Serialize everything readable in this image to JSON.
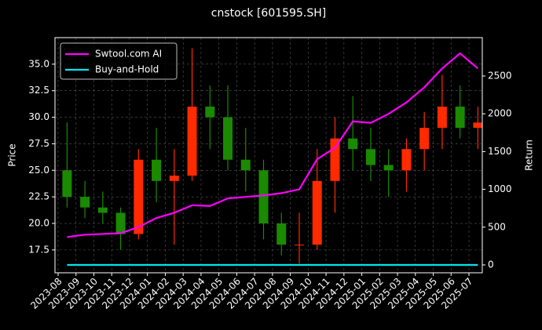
{
  "chart_data": {
    "type": "candlestick",
    "title": "cnstock [601595.SH]",
    "y_label": "Price",
    "y2_label": "Return",
    "categories": [
      "2023-08",
      "2023-09",
      "2023-10",
      "2023-11",
      "2023-12",
      "2024-01",
      "2024-02",
      "2024-03",
      "2024-04",
      "2024-05",
      "2024-06",
      "2024-07",
      "2024-08",
      "2024-09",
      "2024-10",
      "2024-11",
      "2024-12",
      "2025-01",
      "2025-02",
      "2025-03",
      "2025-04",
      "2025-05",
      "2025-06",
      "2025-07"
    ],
    "open": [
      25,
      22.5,
      21.5,
      21,
      19,
      26,
      24,
      24.5,
      31,
      30,
      26,
      25,
      20,
      18,
      18,
      24,
      28,
      27,
      25.5,
      25,
      27,
      29,
      31,
      29
    ],
    "high": [
      29.5,
      24,
      23,
      21.5,
      27,
      29,
      27,
      36.5,
      33,
      33,
      29,
      26,
      21,
      21,
      27,
      30,
      32,
      29,
      27,
      28,
      30.5,
      34,
      33,
      31
    ],
    "low": [
      21.5,
      20.5,
      20,
      17.5,
      18.5,
      22,
      18,
      24,
      27,
      25,
      23,
      18.5,
      17,
      16.2,
      17.5,
      21,
      25,
      24,
      22.5,
      23,
      25,
      27,
      28,
      27
    ],
    "close": [
      22.5,
      21.5,
      21,
      19,
      26,
      24,
      24.5,
      31,
      30,
      26,
      25,
      20,
      18,
      18,
      24,
      28,
      27,
      25.5,
      25,
      27,
      29,
      31,
      29,
      29.5
    ],
    "up_color": "#ff2a00",
    "down_color": "#1a8a00",
    "series": [
      {
        "name": "Swtool.com AI",
        "color": "#ff00ff",
        "axis": "y2",
        "values": [
          370,
          400,
          410,
          420,
          500,
          620,
          690,
          790,
          780,
          880,
          900,
          920,
          950,
          1000,
          1400,
          1550,
          1900,
          1880,
          2000,
          2150,
          2350,
          2600,
          2800,
          2600
        ]
      },
      {
        "name": "Buy-and-Hold",
        "color": "#00e5ee",
        "axis": "y2",
        "values": [
          0,
          0,
          0,
          0,
          0,
          0,
          0,
          0,
          0,
          0,
          0,
          0,
          0,
          0,
          0,
          0,
          0,
          0,
          0,
          0,
          0,
          0,
          0,
          0
        ]
      }
    ],
    "ylim": [
      15.35,
      37.5
    ],
    "yticks": [
      17.5,
      {
        "value": 20,
        "label": "20.0"
      },
      22.5,
      {
        "value": 25,
        "label": "25.0"
      },
      27.5,
      {
        "value": 30,
        "label": "30.0"
      },
      32.5,
      {
        "value": 35,
        "label": "35.0"
      }
    ],
    "y2lim": [
      -104,
      3008
    ],
    "y2ticks": [
      0,
      500,
      1000,
      1500,
      2000,
      2500
    ],
    "grid": true,
    "legend": "upper left"
  }
}
